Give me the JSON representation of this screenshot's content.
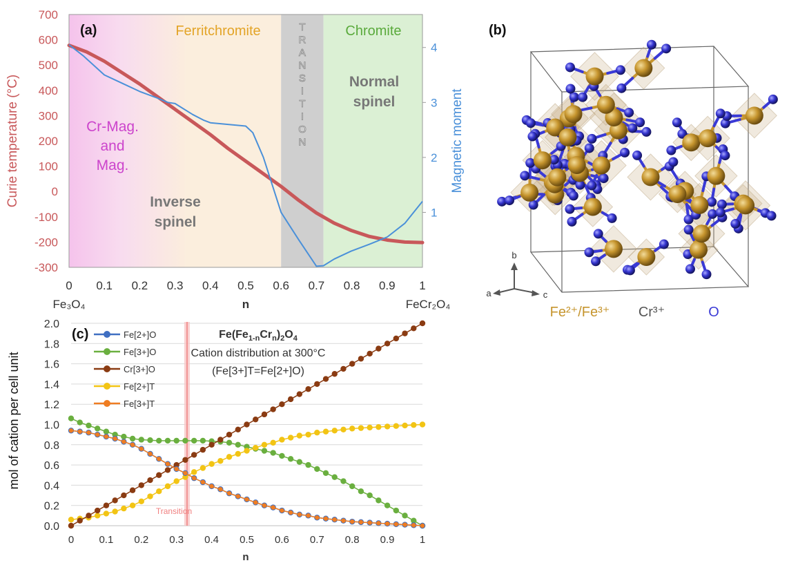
{
  "colors": {
    "curie": "#c8585a",
    "moment": "#4a90d9",
    "zone_mag": "#f6c9ee",
    "zone_ferrite": "#fbeedd",
    "zone_transition": "#cfcfcf",
    "zone_chromite": "#dbf0d4",
    "ferritechromite_text": "#e3a427",
    "chromite_text": "#5aaa3c",
    "mag_text": "#cc44cc",
    "spinel_text": "#777777",
    "fe_atom": "#c6952e",
    "o_atom": "#3a3ad6",
    "cr_text": "#555555",
    "transition_line": "#f08080"
  },
  "panel_a": {
    "label": "(a)",
    "zone_labels": {
      "ferritechromite": "Ferritchromite",
      "chromite": "Chromite",
      "transition": "TRANSITION",
      "mag_line1": "Cr-Mag.",
      "mag_line2": "and",
      "mag_line3": "Mag.",
      "inverse_line1": "Inverse",
      "inverse_line2": "spinel",
      "normal_line1": "Normal",
      "normal_line2": "spinel"
    },
    "x_end_labels": {
      "left": "Fe₃O₄",
      "right": "FeCr₂O₄"
    }
  },
  "panel_b": {
    "label": "(b)",
    "axes": {
      "a": "a",
      "b": "b",
      "c": "c"
    },
    "legend": {
      "fe": "Fe²⁺/Fe³⁺",
      "cr": "Cr³⁺",
      "o": "O"
    }
  },
  "panel_c": {
    "label": "(c)",
    "title_base": "Fe(Fe",
    "title_sub1": "1-n",
    "title_cr": "Cr",
    "title_sub2": "n",
    "title_close": ")",
    "title_sub3": "2",
    "title_o": "O",
    "title_sub4": "4",
    "subtitle1": "Cation distribution at 300°C",
    "subtitle2": "(Fe[3+]T=Fe[2+]O)",
    "transition_label": "Transition"
  },
  "chart_data": [
    {
      "type": "line",
      "panel": "a",
      "xlabel": "n",
      "ylabel": "Curie temperature (°C)",
      "y2label": "Magnetic moment",
      "xlim": [
        0,
        1
      ],
      "ylim": [
        -300,
        700
      ],
      "y2lim": [
        0,
        4.6
      ],
      "x_ticks": [
        "0",
        "0.1",
        "0.2",
        "0.3",
        "0.4",
        "0.5",
        "0.6",
        "0.7",
        "0.8",
        "0.9",
        "1"
      ],
      "y_ticks": [
        "-300",
        "-200",
        "-100",
        "0",
        "100",
        "200",
        "300",
        "400",
        "500",
        "600",
        "700"
      ],
      "y2_ticks": [
        "1",
        "2",
        "3",
        "4"
      ],
      "zones": [
        {
          "name": "Cr-Mag. and Mag.",
          "x": [
            0,
            0.24
          ]
        },
        {
          "name": "Ferritchromite",
          "x": [
            0.24,
            0.6
          ]
        },
        {
          "name": "Transition",
          "x": [
            0.6,
            0.72
          ]
        },
        {
          "name": "Chromite",
          "x": [
            0.72,
            1
          ]
        }
      ],
      "series": [
        {
          "name": "Curie temperature",
          "axis": "left",
          "x": [
            0,
            0.05,
            0.1,
            0.15,
            0.2,
            0.25,
            0.3,
            0.35,
            0.4,
            0.45,
            0.5,
            0.55,
            0.6,
            0.65,
            0.7,
            0.75,
            0.8,
            0.85,
            0.9,
            0.95,
            1
          ],
          "y": [
            578,
            552,
            515,
            470,
            425,
            375,
            325,
            275,
            225,
            170,
            120,
            70,
            20,
            -35,
            -85,
            -125,
            -155,
            -178,
            -192,
            -200,
            -202
          ]
        },
        {
          "name": "Magnetic moment",
          "axis": "right",
          "x": [
            0,
            0.04,
            0.1,
            0.15,
            0.2,
            0.25,
            0.28,
            0.3,
            0.35,
            0.38,
            0.4,
            0.45,
            0.5,
            0.52,
            0.55,
            0.6,
            0.65,
            0.7,
            0.72,
            0.75,
            0.8,
            0.85,
            0.9,
            0.95,
            1
          ],
          "y": [
            4.05,
            3.85,
            3.5,
            3.35,
            3.2,
            3.08,
            3.0,
            2.98,
            2.78,
            2.68,
            2.63,
            2.6,
            2.57,
            2.45,
            2.0,
            1.0,
            0.5,
            0.02,
            0.03,
            0.15,
            0.3,
            0.42,
            0.55,
            0.8,
            1.2
          ]
        }
      ]
    },
    {
      "type": "line",
      "panel": "c",
      "title": "Fe(Fe1-nCrn)2O4",
      "subtitle": "Cation distribution at 300°C (Fe[3+]T=Fe[2+]O)",
      "xlabel": "n",
      "ylabel": "mol of cation per cell unit",
      "xlim": [
        0,
        1
      ],
      "ylim": [
        0,
        2.0
      ],
      "x_ticks": [
        "0",
        "0.1",
        "0.2",
        "0.3",
        "0.4",
        "0.5",
        "0.6",
        "0.7",
        "0.8",
        "0.9",
        "1"
      ],
      "y_ticks": [
        "0.0",
        "0.2",
        "0.4",
        "0.6",
        "0.8",
        "1.0",
        "1.2",
        "1.4",
        "1.6",
        "1.8",
        "2.0"
      ],
      "legend": "top-left",
      "transition_x": 0.33,
      "x": [
        0,
        0.025,
        0.05,
        0.075,
        0.1,
        0.125,
        0.15,
        0.175,
        0.2,
        0.225,
        0.25,
        0.275,
        0.3,
        0.325,
        0.35,
        0.375,
        0.4,
        0.425,
        0.45,
        0.475,
        0.5,
        0.525,
        0.55,
        0.575,
        0.6,
        0.625,
        0.65,
        0.675,
        0.7,
        0.725,
        0.75,
        0.775,
        0.8,
        0.825,
        0.85,
        0.875,
        0.9,
        0.925,
        0.95,
        0.975,
        1
      ],
      "series": [
        {
          "name": "Fe[2+]O",
          "color": "#3f6fc2",
          "values": [
            0.94,
            0.93,
            0.92,
            0.9,
            0.88,
            0.86,
            0.83,
            0.8,
            0.76,
            0.71,
            0.66,
            0.61,
            0.56,
            0.52,
            0.47,
            0.43,
            0.39,
            0.36,
            0.32,
            0.29,
            0.26,
            0.23,
            0.2,
            0.18,
            0.15,
            0.13,
            0.11,
            0.1,
            0.08,
            0.07,
            0.06,
            0.05,
            0.04,
            0.035,
            0.03,
            0.025,
            0.02,
            0.015,
            0.01,
            0.005,
            0.0
          ]
        },
        {
          "name": "Fe[3+]O",
          "color": "#6aaf3f",
          "values": [
            1.06,
            1.02,
            0.99,
            0.96,
            0.93,
            0.9,
            0.88,
            0.86,
            0.85,
            0.845,
            0.84,
            0.84,
            0.84,
            0.84,
            0.84,
            0.84,
            0.835,
            0.83,
            0.82,
            0.8,
            0.78,
            0.76,
            0.74,
            0.72,
            0.69,
            0.66,
            0.63,
            0.6,
            0.56,
            0.52,
            0.48,
            0.44,
            0.39,
            0.34,
            0.3,
            0.25,
            0.2,
            0.15,
            0.1,
            0.05,
            0.0
          ]
        },
        {
          "name": "Cr[3+]O",
          "color": "#8a3b12",
          "values": [
            0.0,
            0.05,
            0.1,
            0.15,
            0.2,
            0.25,
            0.3,
            0.35,
            0.4,
            0.45,
            0.5,
            0.55,
            0.6,
            0.65,
            0.7,
            0.75,
            0.8,
            0.85,
            0.9,
            0.95,
            1.0,
            1.05,
            1.1,
            1.15,
            1.2,
            1.25,
            1.3,
            1.35,
            1.4,
            1.45,
            1.5,
            1.55,
            1.6,
            1.65,
            1.7,
            1.75,
            1.8,
            1.85,
            1.9,
            1.95,
            2.0
          ]
        },
        {
          "name": "Fe[2+]T",
          "color": "#f2c414",
          "values": [
            0.06,
            0.07,
            0.08,
            0.1,
            0.12,
            0.14,
            0.17,
            0.2,
            0.24,
            0.29,
            0.34,
            0.39,
            0.44,
            0.48,
            0.53,
            0.57,
            0.61,
            0.64,
            0.68,
            0.71,
            0.74,
            0.77,
            0.8,
            0.82,
            0.85,
            0.87,
            0.89,
            0.9,
            0.92,
            0.93,
            0.94,
            0.95,
            0.96,
            0.965,
            0.97,
            0.975,
            0.98,
            0.985,
            0.99,
            0.995,
            1.0
          ]
        },
        {
          "name": "Fe[3+]T",
          "color": "#ef7d22",
          "values": [
            0.94,
            0.93,
            0.92,
            0.9,
            0.88,
            0.86,
            0.83,
            0.8,
            0.76,
            0.71,
            0.66,
            0.61,
            0.56,
            0.52,
            0.47,
            0.43,
            0.39,
            0.36,
            0.32,
            0.29,
            0.26,
            0.23,
            0.2,
            0.18,
            0.15,
            0.13,
            0.11,
            0.1,
            0.08,
            0.07,
            0.06,
            0.05,
            0.04,
            0.035,
            0.03,
            0.025,
            0.02,
            0.015,
            0.01,
            0.005,
            0.0
          ]
        }
      ]
    }
  ]
}
